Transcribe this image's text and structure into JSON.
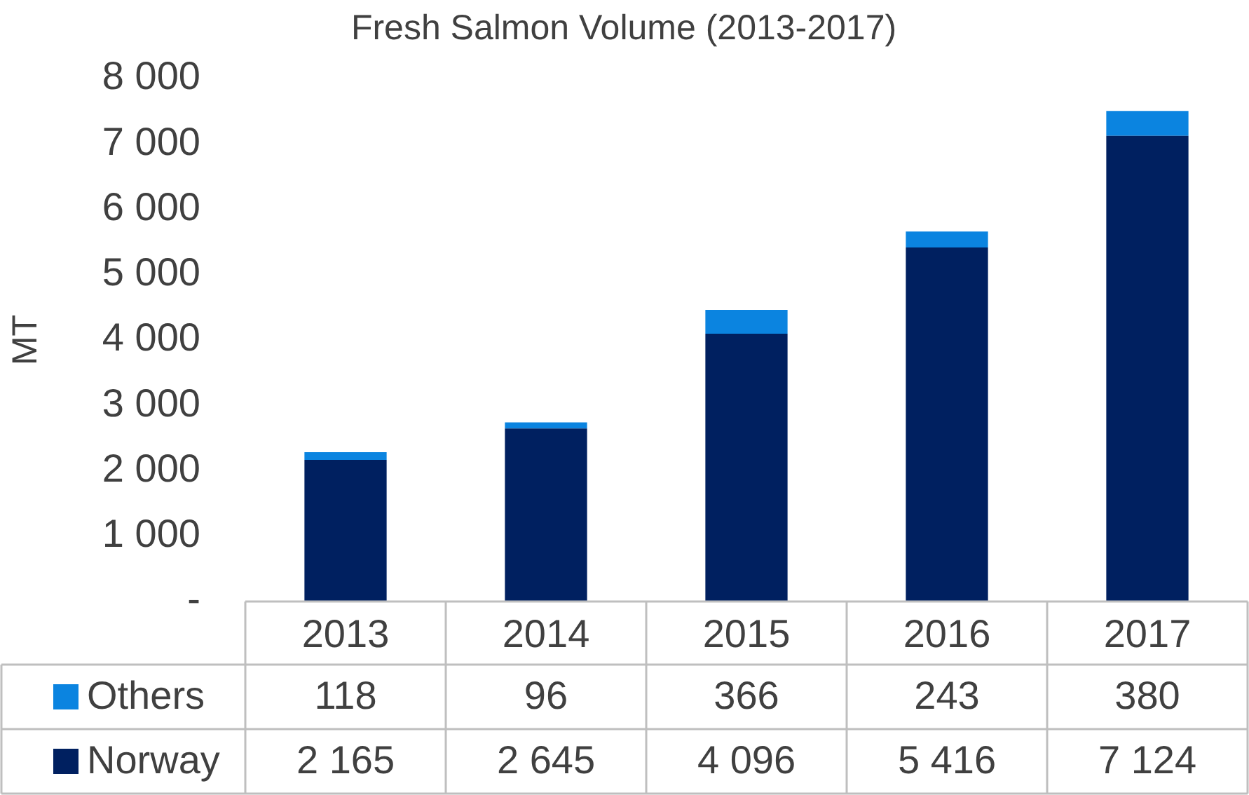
{
  "chart_data": {
    "type": "bar",
    "title": "Fresh Salmon Volume (2013-2017)",
    "ylabel": "MT",
    "categories": [
      "2013",
      "2014",
      "2015",
      "2016",
      "2017"
    ],
    "series": [
      {
        "name": "Norway",
        "color": "#002060",
        "values": [
          2165,
          2645,
          4096,
          5416,
          7124
        ]
      },
      {
        "name": "Others",
        "color": "#0b84e0",
        "values": [
          118,
          96,
          366,
          243,
          380
        ]
      }
    ],
    "stacked": true,
    "ylim": [
      0,
      8000
    ],
    "yticks": [
      {
        "value": 0,
        "label": "-"
      },
      {
        "value": 1000,
        "label": "1 000"
      },
      {
        "value": 2000,
        "label": "2 000"
      },
      {
        "value": 3000,
        "label": "3 000"
      },
      {
        "value": 4000,
        "label": "4 000"
      },
      {
        "value": 5000,
        "label": "5 000"
      },
      {
        "value": 6000,
        "label": "6 000"
      },
      {
        "value": 7000,
        "label": "7 000"
      },
      {
        "value": 8000,
        "label": "8 000"
      }
    ],
    "grid": false,
    "legend": "bottom",
    "data_labels": true
  }
}
